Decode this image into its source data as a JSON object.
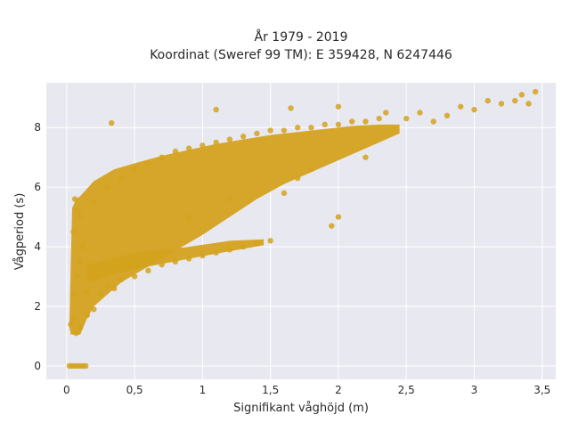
{
  "chart_data": {
    "type": "scatter",
    "title": [
      "År 1979 - 2019",
      "Koordinat (Sweref 99 TM): E 359428, N 6247446"
    ],
    "xlabel": "Signifikant våghöjd (m)",
    "ylabel": "Vågperiod (s)",
    "xlim": [
      -0.15,
      3.6
    ],
    "ylim": [
      -0.45,
      9.5
    ],
    "xticks": [
      0,
      0.5,
      1,
      1.5,
      2,
      2.5,
      3,
      3.5
    ],
    "xtick_labels": [
      "0",
      "0,5",
      "1",
      "1,5",
      "2",
      "2,5",
      "3",
      "3,5"
    ],
    "yticks": [
      0,
      2,
      4,
      6,
      8
    ],
    "ytick_labels": [
      "0",
      "2",
      "4",
      "6",
      "8"
    ],
    "grid": true,
    "marker_color": "#D4A21E",
    "background_color": "#E8E8F0",
    "points": [
      [
        0.02,
        0
      ],
      [
        0.04,
        0
      ],
      [
        0.06,
        0
      ],
      [
        0.08,
        0
      ],
      [
        0.1,
        0
      ],
      [
        0.12,
        0
      ],
      [
        0.14,
        0
      ],
      [
        0.03,
        1.4
      ],
      [
        0.05,
        1.6
      ],
      [
        0.07,
        1.1
      ],
      [
        0.1,
        1.3
      ],
      [
        0.15,
        1.7
      ],
      [
        0.2,
        1.9
      ],
      [
        0.05,
        2.4
      ],
      [
        0.08,
        3.0
      ],
      [
        0.1,
        3.5
      ],
      [
        0.12,
        4.0
      ],
      [
        0.05,
        4.5
      ],
      [
        0.08,
        5.2
      ],
      [
        0.06,
        5.6
      ],
      [
        0.1,
        5.0
      ],
      [
        0.15,
        2.5
      ],
      [
        0.2,
        3.0
      ],
      [
        0.25,
        2.4
      ],
      [
        0.3,
        2.7
      ],
      [
        0.35,
        2.6
      ],
      [
        0.4,
        2.9
      ],
      [
        0.5,
        3.0
      ],
      [
        0.6,
        3.2
      ],
      [
        0.7,
        3.4
      ],
      [
        0.8,
        3.5
      ],
      [
        0.9,
        3.6
      ],
      [
        1.0,
        3.7
      ],
      [
        1.1,
        3.8
      ],
      [
        1.2,
        3.9
      ],
      [
        1.3,
        4.0
      ],
      [
        1.4,
        4.1
      ],
      [
        1.5,
        4.2
      ],
      [
        0.2,
        5.5
      ],
      [
        0.3,
        6.0
      ],
      [
        0.4,
        6.3
      ],
      [
        0.5,
        6.6
      ],
      [
        0.6,
        6.8
      ],
      [
        0.7,
        7.0
      ],
      [
        0.8,
        7.2
      ],
      [
        0.9,
        7.3
      ],
      [
        1.0,
        7.4
      ],
      [
        1.1,
        7.5
      ],
      [
        1.2,
        7.6
      ],
      [
        1.3,
        7.7
      ],
      [
        1.4,
        7.8
      ],
      [
        1.5,
        7.9
      ],
      [
        1.6,
        7.9
      ],
      [
        1.7,
        8.0
      ],
      [
        1.8,
        8.0
      ],
      [
        1.9,
        8.1
      ],
      [
        2.0,
        8.1
      ],
      [
        2.1,
        8.2
      ],
      [
        2.2,
        8.2
      ],
      [
        2.3,
        8.3
      ],
      [
        0.33,
        8.15
      ],
      [
        1.1,
        8.6
      ],
      [
        1.65,
        8.65
      ],
      [
        2.0,
        8.7
      ],
      [
        2.35,
        8.5
      ],
      [
        2.5,
        8.3
      ],
      [
        2.6,
        8.5
      ],
      [
        2.7,
        8.2
      ],
      [
        2.8,
        8.4
      ],
      [
        2.9,
        8.7
      ],
      [
        3.0,
        8.6
      ],
      [
        3.1,
        8.9
      ],
      [
        3.2,
        8.8
      ],
      [
        3.3,
        8.9
      ],
      [
        3.35,
        9.1
      ],
      [
        3.45,
        9.2
      ],
      [
        3.4,
        8.8
      ],
      [
        1.95,
        4.7
      ],
      [
        2.0,
        5.0
      ],
      [
        1.7,
        6.3
      ],
      [
        1.8,
        6.6
      ],
      [
        1.2,
        5.6
      ],
      [
        0.9,
        5.0
      ],
      [
        1.6,
        5.8
      ],
      [
        2.2,
        7.0
      ]
    ]
  }
}
